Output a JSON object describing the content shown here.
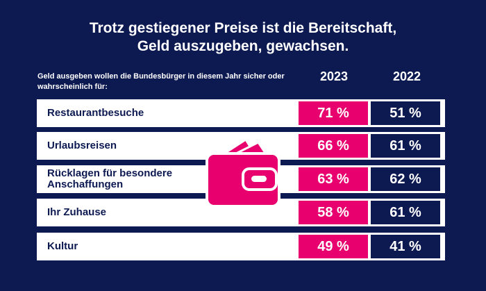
{
  "chart_data": {
    "type": "table",
    "title": "Trotz gestiegener Preise ist die Bereitschaft, Geld auszugeben, gewachsen.",
    "subtitle": "Geld ausgeben wollen die Bundesbürger in diesem Jahr sicher oder wahrscheinlich für:",
    "columns": [
      "2023",
      "2022"
    ],
    "rows": [
      {
        "label": "Restaurantbesuche",
        "v2023": "71 %",
        "v2022": "51 %"
      },
      {
        "label": "Urlaubsreisen",
        "v2023": "66 %",
        "v2022": "61 %"
      },
      {
        "label": "Rücklagen für besondere Anschaffungen",
        "v2023": "63 %",
        "v2022": "62 %"
      },
      {
        "label": "Ihr Zuhause",
        "v2023": "58 %",
        "v2022": "61 %"
      },
      {
        "label": "Kultur",
        "v2023": "49 %",
        "v2022": "41 %"
      }
    ]
  },
  "colors": {
    "background": "#0d1a52",
    "accent_2023": "#e8006f",
    "cell_2022": "#0d1a52",
    "row_bg": "#ffffff"
  },
  "icons": {
    "center": "wallet-icon"
  }
}
